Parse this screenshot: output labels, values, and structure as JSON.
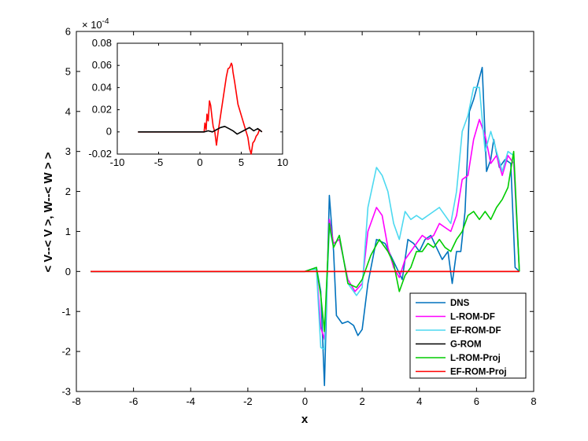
{
  "chart_data": [
    {
      "type": "line",
      "xlabel": "x",
      "ylabel": "< V--< V >, W--< W > >",
      "xlim": [
        -8,
        8
      ],
      "ylim": [
        -3,
        6
      ],
      "xticks": [
        "-8",
        "-6",
        "-4",
        "-2",
        "0",
        "2",
        "4",
        "6",
        "8"
      ],
      "yticks": [
        "-3",
        "-2",
        "-1",
        "0",
        "1",
        "2",
        "3",
        "4",
        "5",
        "6"
      ],
      "yexponent": "x 10^-4",
      "exponent_base": "× 10",
      "exponent_power": "-4",
      "grid": false,
      "legend_position": "bottom-right",
      "series": [
        {
          "name": "DNS",
          "color": "#0072bd",
          "x": [
            -7.5,
            0,
            0.2,
            0.4,
            0.55,
            0.68,
            0.85,
            1.0,
            1.1,
            1.3,
            1.5,
            1.7,
            1.85,
            2.0,
            2.2,
            2.5,
            2.8,
            3.0,
            3.2,
            3.4,
            3.6,
            3.8,
            4.0,
            4.2,
            4.4,
            4.6,
            4.8,
            5.0,
            5.15,
            5.3,
            5.45,
            5.6,
            5.75,
            5.9,
            6.05,
            6.2,
            6.35,
            6.5,
            6.6,
            6.8,
            7.0,
            7.2,
            7.35,
            7.5
          ],
          "y": [
            0,
            0,
            0.05,
            0.1,
            -0.5,
            -2.85,
            1.9,
            0.5,
            -1.1,
            -1.3,
            -1.25,
            -1.35,
            -1.6,
            -1.45,
            -0.3,
            0.8,
            0.7,
            0.4,
            0.1,
            -0.2,
            0.8,
            0.7,
            0.5,
            0.8,
            0.9,
            0.6,
            0.3,
            0.5,
            -0.3,
            0.5,
            0.5,
            1.5,
            4.0,
            4.3,
            4.7,
            5.1,
            2.5,
            2.8,
            3.3,
            2.6,
            2.8,
            2.7,
            0.1,
            0
          ]
        },
        {
          "name": "L-ROM-DF",
          "color": "#ff00ff",
          "x": [
            -7.5,
            0,
            0.2,
            0.4,
            0.55,
            0.68,
            0.85,
            1.0,
            1.2,
            1.5,
            1.75,
            2.0,
            2.2,
            2.5,
            2.7,
            2.9,
            3.1,
            3.3,
            3.5,
            3.7,
            3.9,
            4.1,
            4.3,
            4.5,
            4.7,
            4.9,
            5.1,
            5.3,
            5.5,
            5.7,
            5.9,
            6.1,
            6.3,
            6.5,
            6.7,
            6.9,
            7.1,
            7.3,
            7.5
          ],
          "y": [
            0,
            0,
            0.05,
            0.05,
            -1.4,
            -1.7,
            1.3,
            0.7,
            0.8,
            -0.2,
            -0.5,
            -0.3,
            1.0,
            1.6,
            1.4,
            0.6,
            0.1,
            -0.15,
            0.3,
            0.5,
            0.7,
            0.9,
            0.8,
            0.9,
            1.2,
            1.1,
            1.0,
            1.4,
            2.3,
            2.4,
            3.3,
            3.8,
            3.4,
            2.7,
            2.9,
            2.4,
            2.9,
            2.7,
            0
          ]
        },
        {
          "name": "EF-ROM-DF",
          "color": "#4dd9f0",
          "x": [
            -7.5,
            0,
            0.2,
            0.4,
            0.55,
            0.68,
            0.85,
            1.0,
            1.2,
            1.5,
            1.8,
            2.0,
            2.2,
            2.5,
            2.7,
            2.9,
            3.1,
            3.3,
            3.5,
            3.7,
            3.9,
            4.1,
            4.3,
            4.5,
            4.7,
            4.9,
            5.1,
            5.3,
            5.5,
            5.7,
            5.9,
            6.1,
            6.3,
            6.5,
            6.7,
            6.9,
            7.1,
            7.3,
            7.5
          ],
          "y": [
            0,
            0,
            0.05,
            0.05,
            -1.9,
            -1.95,
            1.1,
            0.6,
            0.9,
            -0.3,
            -0.6,
            -0.4,
            1.6,
            2.6,
            2.4,
            2.0,
            1.2,
            0.8,
            1.5,
            1.3,
            1.4,
            1.3,
            1.4,
            1.5,
            1.6,
            1.4,
            1.2,
            2.0,
            3.5,
            3.9,
            4.6,
            4.6,
            3.0,
            3.5,
            3.0,
            2.5,
            3.0,
            2.9,
            0
          ]
        },
        {
          "name": "G-ROM",
          "color": "#000000",
          "x": [
            -7.5,
            0,
            7.5
          ],
          "y": [
            0,
            0,
            0
          ]
        },
        {
          "name": "L-ROM-Proj",
          "color": "#00cc00",
          "x": [
            -7.5,
            0,
            0.2,
            0.4,
            0.55,
            0.68,
            0.85,
            1.0,
            1.2,
            1.5,
            1.8,
            2.0,
            2.3,
            2.6,
            2.9,
            3.1,
            3.3,
            3.5,
            3.7,
            3.9,
            4.1,
            4.3,
            4.5,
            4.7,
            4.9,
            5.1,
            5.3,
            5.5,
            5.7,
            5.9,
            6.1,
            6.3,
            6.5,
            6.7,
            6.9,
            7.1,
            7.3,
            7.5
          ],
          "y": [
            0,
            0,
            0.05,
            0.1,
            -0.6,
            -1.5,
            1.2,
            0.6,
            0.9,
            -0.3,
            -0.4,
            -0.2,
            0.4,
            0.8,
            0.5,
            0.2,
            -0.5,
            -0.1,
            0.1,
            0.5,
            0.5,
            0.7,
            0.6,
            0.8,
            0.6,
            0.5,
            0.8,
            1.0,
            1.4,
            1.5,
            1.3,
            1.5,
            1.3,
            1.6,
            1.8,
            2.1,
            3.0,
            0
          ]
        },
        {
          "name": "EF-ROM-Proj",
          "color": "#ff0000",
          "x": [
            -7.5,
            7.5
          ],
          "y": [
            0,
            0
          ]
        }
      ]
    },
    {
      "type": "line",
      "xlim": [
        -10,
        10
      ],
      "ylim": [
        -0.02,
        0.08
      ],
      "xticks": [
        "-10",
        "-5",
        "0",
        "5",
        "10"
      ],
      "yticks": [
        "-0.02",
        "0",
        "0.02",
        "0.04",
        "0.06",
        "0.08"
      ],
      "grid": false,
      "series": [
        {
          "name": "EF-ROM-Proj",
          "color": "#ff0000",
          "x": [
            -7.5,
            0.5,
            0.6,
            0.75,
            0.85,
            1.0,
            1.15,
            1.3,
            1.45,
            1.6,
            1.8,
            2.0,
            2.2,
            2.4,
            2.6,
            2.8,
            3.0,
            3.2,
            3.4,
            3.6,
            3.8,
            3.9,
            4.0,
            4.2,
            4.4,
            4.6,
            4.8,
            5.0,
            5.2,
            5.4,
            5.6,
            5.8,
            6.0,
            6.2,
            6.4,
            6.6,
            6.8,
            7.0,
            7.2,
            7.5
          ],
          "y": [
            0,
            0,
            0.008,
            0.002,
            0.016,
            0.01,
            0.028,
            0.024,
            0.014,
            0.005,
            0.0,
            -0.012,
            0.0,
            0.01,
            0.02,
            0.03,
            0.04,
            0.05,
            0.057,
            0.058,
            0.062,
            0.06,
            0.054,
            0.045,
            0.035,
            0.025,
            0.02,
            0.015,
            0.01,
            0.005,
            0.0,
            -0.005,
            -0.015,
            -0.02,
            -0.01,
            -0.008,
            -0.004,
            -0.002,
            0.002,
            0
          ]
        },
        {
          "name": "G-ROM",
          "color": "#000000",
          "x": [
            -7.5,
            0.5,
            1.0,
            1.5,
            2.0,
            2.5,
            3.0,
            3.5,
            4.0,
            4.5,
            5.0,
            5.5,
            6.0,
            6.5,
            7.0,
            7.5
          ],
          "y": [
            0,
            0,
            0.001,
            0.0,
            0.002,
            0.004,
            0.005,
            0.003,
            0.001,
            -0.002,
            0.0,
            0.002,
            0.004,
            0.001,
            0.003,
            0.0
          ]
        }
      ]
    }
  ]
}
